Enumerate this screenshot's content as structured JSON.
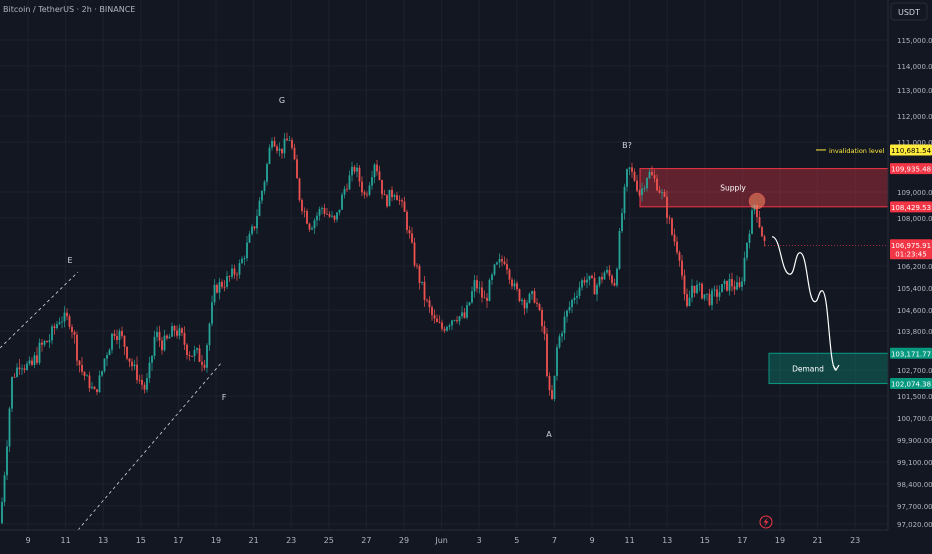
{
  "chart_data": {
    "type": "candlestick",
    "title": "Bitcoin / TetherUS · 2h · BINANCE",
    "currency": "USDT",
    "ylim": [
      96900,
      116100
    ],
    "y_ticks": [
      115000,
      114000,
      113000,
      112000,
      111000,
      109000,
      108000,
      106200,
      105400,
      104600,
      103800,
      102700,
      101500,
      100700,
      99900,
      99100,
      98400,
      97700,
      97020
    ],
    "x_tick_labels": [
      "9",
      "11",
      "13",
      "15",
      "17",
      "19",
      "21",
      "23",
      "25",
      "27",
      "29",
      "Jun",
      "3",
      "5",
      "7",
      "9",
      "11",
      "13",
      "15",
      "17",
      "19",
      "21",
      "23"
    ],
    "price_path": [
      {
        "t": 0,
        "price": 97050
      },
      {
        "t": 6,
        "price": 99400
      },
      {
        "t": 12,
        "price": 102300
      },
      {
        "t": 20,
        "price": 103000
      },
      {
        "t": 30,
        "price": 102700
      },
      {
        "t": 40,
        "price": 103300
      },
      {
        "t": 50,
        "price": 103600
      },
      {
        "t": 60,
        "price": 104300
      },
      {
        "t": 70,
        "price": 104200
      },
      {
        "t": 80,
        "price": 102800
      },
      {
        "t": 95,
        "price": 101600
      },
      {
        "t": 105,
        "price": 103100
      },
      {
        "t": 115,
        "price": 103900
      },
      {
        "t": 125,
        "price": 103400
      },
      {
        "t": 135,
        "price": 102600
      },
      {
        "t": 145,
        "price": 101800
      },
      {
        "t": 155,
        "price": 103700
      },
      {
        "t": 165,
        "price": 103400
      },
      {
        "t": 175,
        "price": 103900
      },
      {
        "t": 190,
        "price": 103200
      },
      {
        "t": 205,
        "price": 103000
      },
      {
        "t": 215,
        "price": 105400
      },
      {
        "t": 228,
        "price": 105700
      },
      {
        "t": 240,
        "price": 106200
      },
      {
        "t": 255,
        "price": 107800
      },
      {
        "t": 265,
        "price": 109600
      },
      {
        "t": 272,
        "price": 111300
      },
      {
        "t": 280,
        "price": 110600
      },
      {
        "t": 290,
        "price": 111200
      },
      {
        "t": 300,
        "price": 108700
      },
      {
        "t": 310,
        "price": 107700
      },
      {
        "t": 322,
        "price": 108400
      },
      {
        "t": 335,
        "price": 107800
      },
      {
        "t": 345,
        "price": 109200
      },
      {
        "t": 355,
        "price": 110000
      },
      {
        "t": 365,
        "price": 108800
      },
      {
        "t": 375,
        "price": 110300
      },
      {
        "t": 385,
        "price": 108600
      },
      {
        "t": 395,
        "price": 109100
      },
      {
        "t": 405,
        "price": 108100
      },
      {
        "t": 415,
        "price": 106300
      },
      {
        "t": 425,
        "price": 105000
      },
      {
        "t": 435,
        "price": 104100
      },
      {
        "t": 442,
        "price": 103900
      },
      {
        "t": 455,
        "price": 104400
      },
      {
        "t": 465,
        "price": 104300
      },
      {
        "t": 475,
        "price": 105600
      },
      {
        "t": 485,
        "price": 104900
      },
      {
        "t": 495,
        "price": 106100
      },
      {
        "t": 505,
        "price": 106500
      },
      {
        "t": 515,
        "price": 105300
      },
      {
        "t": 525,
        "price": 104900
      },
      {
        "t": 535,
        "price": 105100
      },
      {
        "t": 545,
        "price": 103500
      },
      {
        "t": 551,
        "price": 100900
      },
      {
        "t": 557,
        "price": 103300
      },
      {
        "t": 565,
        "price": 104300
      },
      {
        "t": 575,
        "price": 105200
      },
      {
        "t": 585,
        "price": 105800
      },
      {
        "t": 595,
        "price": 105400
      },
      {
        "t": 605,
        "price": 106000
      },
      {
        "t": 615,
        "price": 105600
      },
      {
        "t": 622,
        "price": 108200
      },
      {
        "t": 628,
        "price": 110000
      },
      {
        "t": 635,
        "price": 109500
      },
      {
        "t": 640,
        "price": 108900
      },
      {
        "t": 648,
        "price": 109800
      },
      {
        "t": 656,
        "price": 109400
      },
      {
        "t": 664,
        "price": 108700
      },
      {
        "t": 672,
        "price": 107400
      },
      {
        "t": 680,
        "price": 106600
      },
      {
        "t": 686,
        "price": 104400
      },
      {
        "t": 692,
        "price": 105500
      },
      {
        "t": 700,
        "price": 105300
      },
      {
        "t": 710,
        "price": 105000
      },
      {
        "t": 720,
        "price": 105300
      },
      {
        "t": 730,
        "price": 105600
      },
      {
        "t": 740,
        "price": 105300
      },
      {
        "t": 748,
        "price": 107400
      },
      {
        "t": 755,
        "price": 108600
      },
      {
        "t": 760,
        "price": 107700
      },
      {
        "t": 765,
        "price": 106976
      }
    ],
    "price_labels": [
      {
        "value": 110681.54,
        "text": "110,681.54",
        "color": "#ffeb3b",
        "text_color": "#000000"
      },
      {
        "value": 109935.48,
        "text": "109,935.48",
        "color": "#f23645",
        "text_color": "#ffffff"
      },
      {
        "value": 108429.53,
        "text": "108,429.53",
        "color": "#f23645",
        "text_color": "#ffffff"
      },
      {
        "value": 106975.91,
        "text": "106,975.91",
        "sub": "01:23:45",
        "color": "#f23645",
        "text_color": "#ffffff"
      },
      {
        "value": 103171.77,
        "text": "103,171.77",
        "color": "#089981",
        "text_color": "#ffffff"
      },
      {
        "value": 102074.38,
        "text": "102,074.38",
        "color": "#089981",
        "text_color": "#ffffff"
      }
    ],
    "zones": [
      {
        "name": "Supply",
        "top": 109935.48,
        "bottom": 108429.53,
        "color": "#f23645"
      },
      {
        "name": "Demand",
        "top": 103171.77,
        "bottom": 102074.38,
        "color": "#089981"
      }
    ],
    "invalidation": {
      "label": "invalidation level",
      "value": 110681.54
    },
    "wave_labels": [
      {
        "text": "E",
        "price": 106500
      },
      {
        "text": "F",
        "price": 101500
      },
      {
        "text": "G",
        "price": 112000
      },
      {
        "text": "A",
        "price": 100400
      },
      {
        "text": "B?",
        "price": 110500
      }
    ],
    "projection": [
      107300,
      105900,
      106700,
      104900,
      105300,
      102700
    ],
    "colors": {
      "up": "#26a69a",
      "down": "#ef5350",
      "background": "#131722",
      "grid": "#1e222d"
    }
  }
}
